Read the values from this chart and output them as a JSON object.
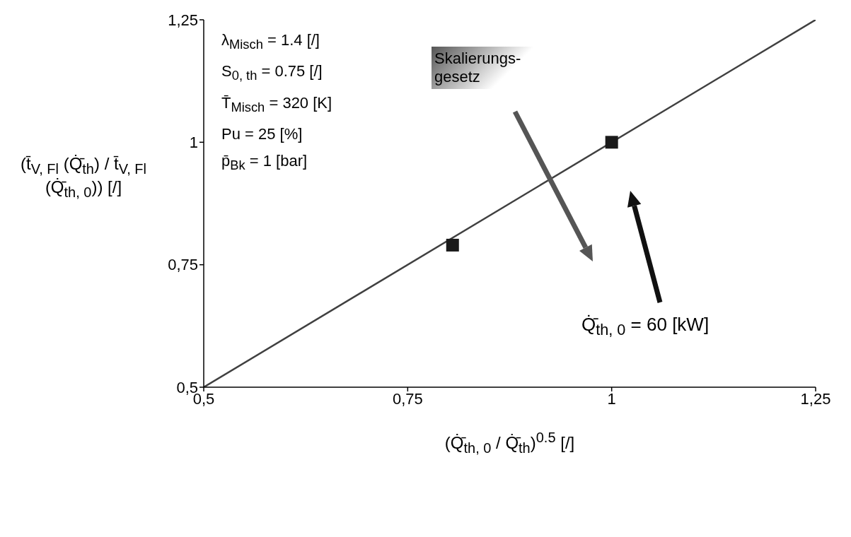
{
  "chart_data": {
    "type": "scatter",
    "xlabel": "(Q̇̄$_{th, 0}$ / Q̇̄$_{th}$)$^{0.5}$ [/]",
    "ylabel": "(t̄$_{V, Fl}$ (Q̇̄$_{th}$) / t̄$_{V, Fl}$ (Q̇̄$_{th, 0}$)) [/]",
    "xlim": [
      0.5,
      1.25
    ],
    "ylim": [
      0.5,
      1.25
    ],
    "xticks": [
      {
        "value": 0.5,
        "label": "0,5"
      },
      {
        "value": 0.75,
        "label": "0,75"
      },
      1,
      {
        "value": 1.25,
        "label": "1,25"
      }
    ],
    "yticks": [
      {
        "value": 0.5,
        "label": "0,5"
      },
      {
        "value": 0.75,
        "label": "0,75"
      },
      1,
      {
        "value": 1.25,
        "label": "1,25"
      }
    ],
    "series": [
      {
        "type": "line",
        "color": "#404040",
        "x": [
          0.5,
          1.25
        ],
        "values": [
          0.5,
          1.25
        ],
        "marker": "none",
        "line_style": "solid"
      },
      {
        "color": "#1a1a1a",
        "x": [
          0.805,
          1.0
        ],
        "values": [
          0.79,
          1.0
        ],
        "marker": "square"
      }
    ],
    "annotations": [
      "λ$_{Misch}$ = 1.4 [/]",
      "S$_{0, th}$ = 0.75 [/]",
      "T̄$_{Misch}$ = 320 [K]",
      "Pu = 25 [%]",
      "p̄$_{Bk}$ = 1 [bar]",
      "Skalierungs- gesetz",
      "Q̇̄$_{th, 0}$ = 60 [kW]"
    ]
  }
}
